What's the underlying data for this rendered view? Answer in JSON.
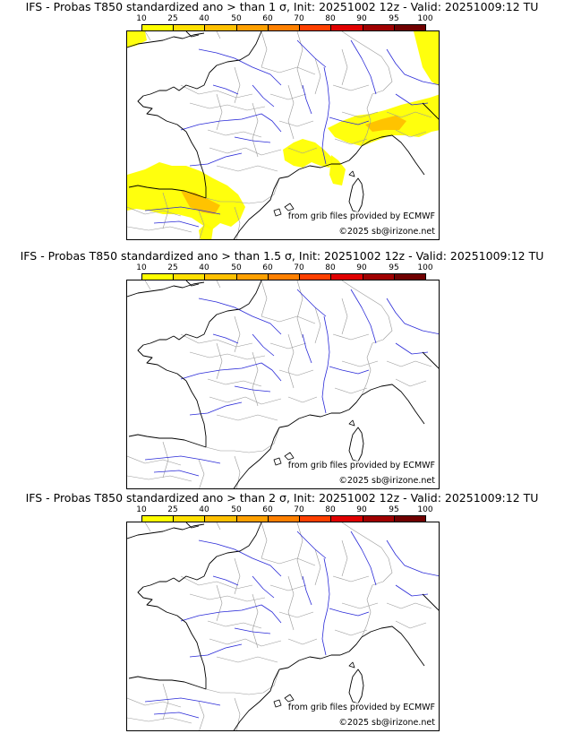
{
  "legend": {
    "labels": [
      "10",
      "25",
      "40",
      "50",
      "60",
      "70",
      "80",
      "90",
      "95",
      "100"
    ],
    "colors": [
      "#ffff00",
      "#ffe000",
      "#ffc000",
      "#ffa000",
      "#ff8000",
      "#ff4000",
      "#e00000",
      "#a00000",
      "#700000"
    ]
  },
  "credits": {
    "source": "from grib files provided by ECMWF",
    "copyright": "©2025 sb@irizone.net"
  },
  "panels": [
    {
      "title": "IFS - Probas T850  standardized ano > than 1 σ, Init: 20251002 12z - Valid: 20251009:12 TU",
      "has_anomaly": true
    },
    {
      "title": "IFS - Probas T850  standardized ano > than 1.5 σ, Init: 20251002 12z - Valid: 20251009:12 TU",
      "has_anomaly": false
    },
    {
      "title": "IFS - Probas T850  standardized ano > than 2 σ, Init: 20251002 12z - Valid: 20251009:12 TU",
      "has_anomaly": false
    }
  ],
  "colors": {
    "coast": "#000000",
    "river": "#2a2ad8",
    "border": "#9a9a9a",
    "prob_low": "#ffff00",
    "prob_mid": "#ffc000"
  }
}
